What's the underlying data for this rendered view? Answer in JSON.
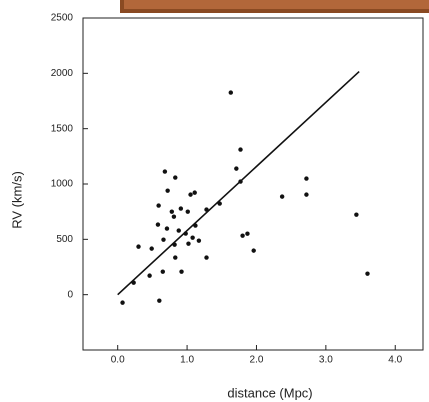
{
  "chart_data": {
    "type": "scatter",
    "x_label": "distance (Mpc)",
    "y_label": "RV (km/s)",
    "xlim": [
      -0.5,
      4.4
    ],
    "ylim": [
      -500,
      2500
    ],
    "xticks": [
      {
        "value": 0,
        "label": "0.0"
      },
      {
        "value": 1,
        "label": "1.0"
      },
      {
        "value": 2,
        "label": "2.0"
      },
      {
        "value": 3,
        "label": "3.0"
      },
      {
        "value": 4,
        "label": "4.0"
      }
    ],
    "yticks": [
      0,
      500,
      1000,
      1500,
      2000,
      2500
    ],
    "color": "#111111",
    "points": {
      "x": [
        0.07,
        0.23,
        0.3,
        0.46,
        0.49,
        0.58,
        0.59,
        0.6,
        0.65,
        0.66,
        0.68,
        0.71,
        0.72,
        0.78,
        0.81,
        0.83,
        0.82,
        0.83,
        0.88,
        0.91,
        0.92,
        0.98,
        1.01,
        1.02,
        1.05,
        1.08,
        1.11,
        1.12,
        1.17,
        1.28,
        1.28,
        1.47,
        1.63,
        1.71,
        1.77,
        1.77,
        1.8,
        1.87,
        1.96,
        2.37,
        2.72,
        2.72,
        3.44,
        3.6
      ],
      "y": [
        -72,
        108,
        434,
        172,
        416,
        633,
        805,
        -54,
        208,
        497,
        1112,
        597,
        940,
        750,
        705,
        1058,
        452,
        335,
        579,
        778,
        208,
        552,
        750,
        461,
        904,
        515,
        922,
        624,
        488,
        769,
        335,
        823,
        1826,
        1139,
        1022,
        1311,
        533,
        551,
        398,
        886,
        1049,
        904,
        723,
        190
      ]
    },
    "line": {
      "x": [
        0,
        3.48
      ],
      "y": [
        0,
        2016
      ]
    }
  }
}
